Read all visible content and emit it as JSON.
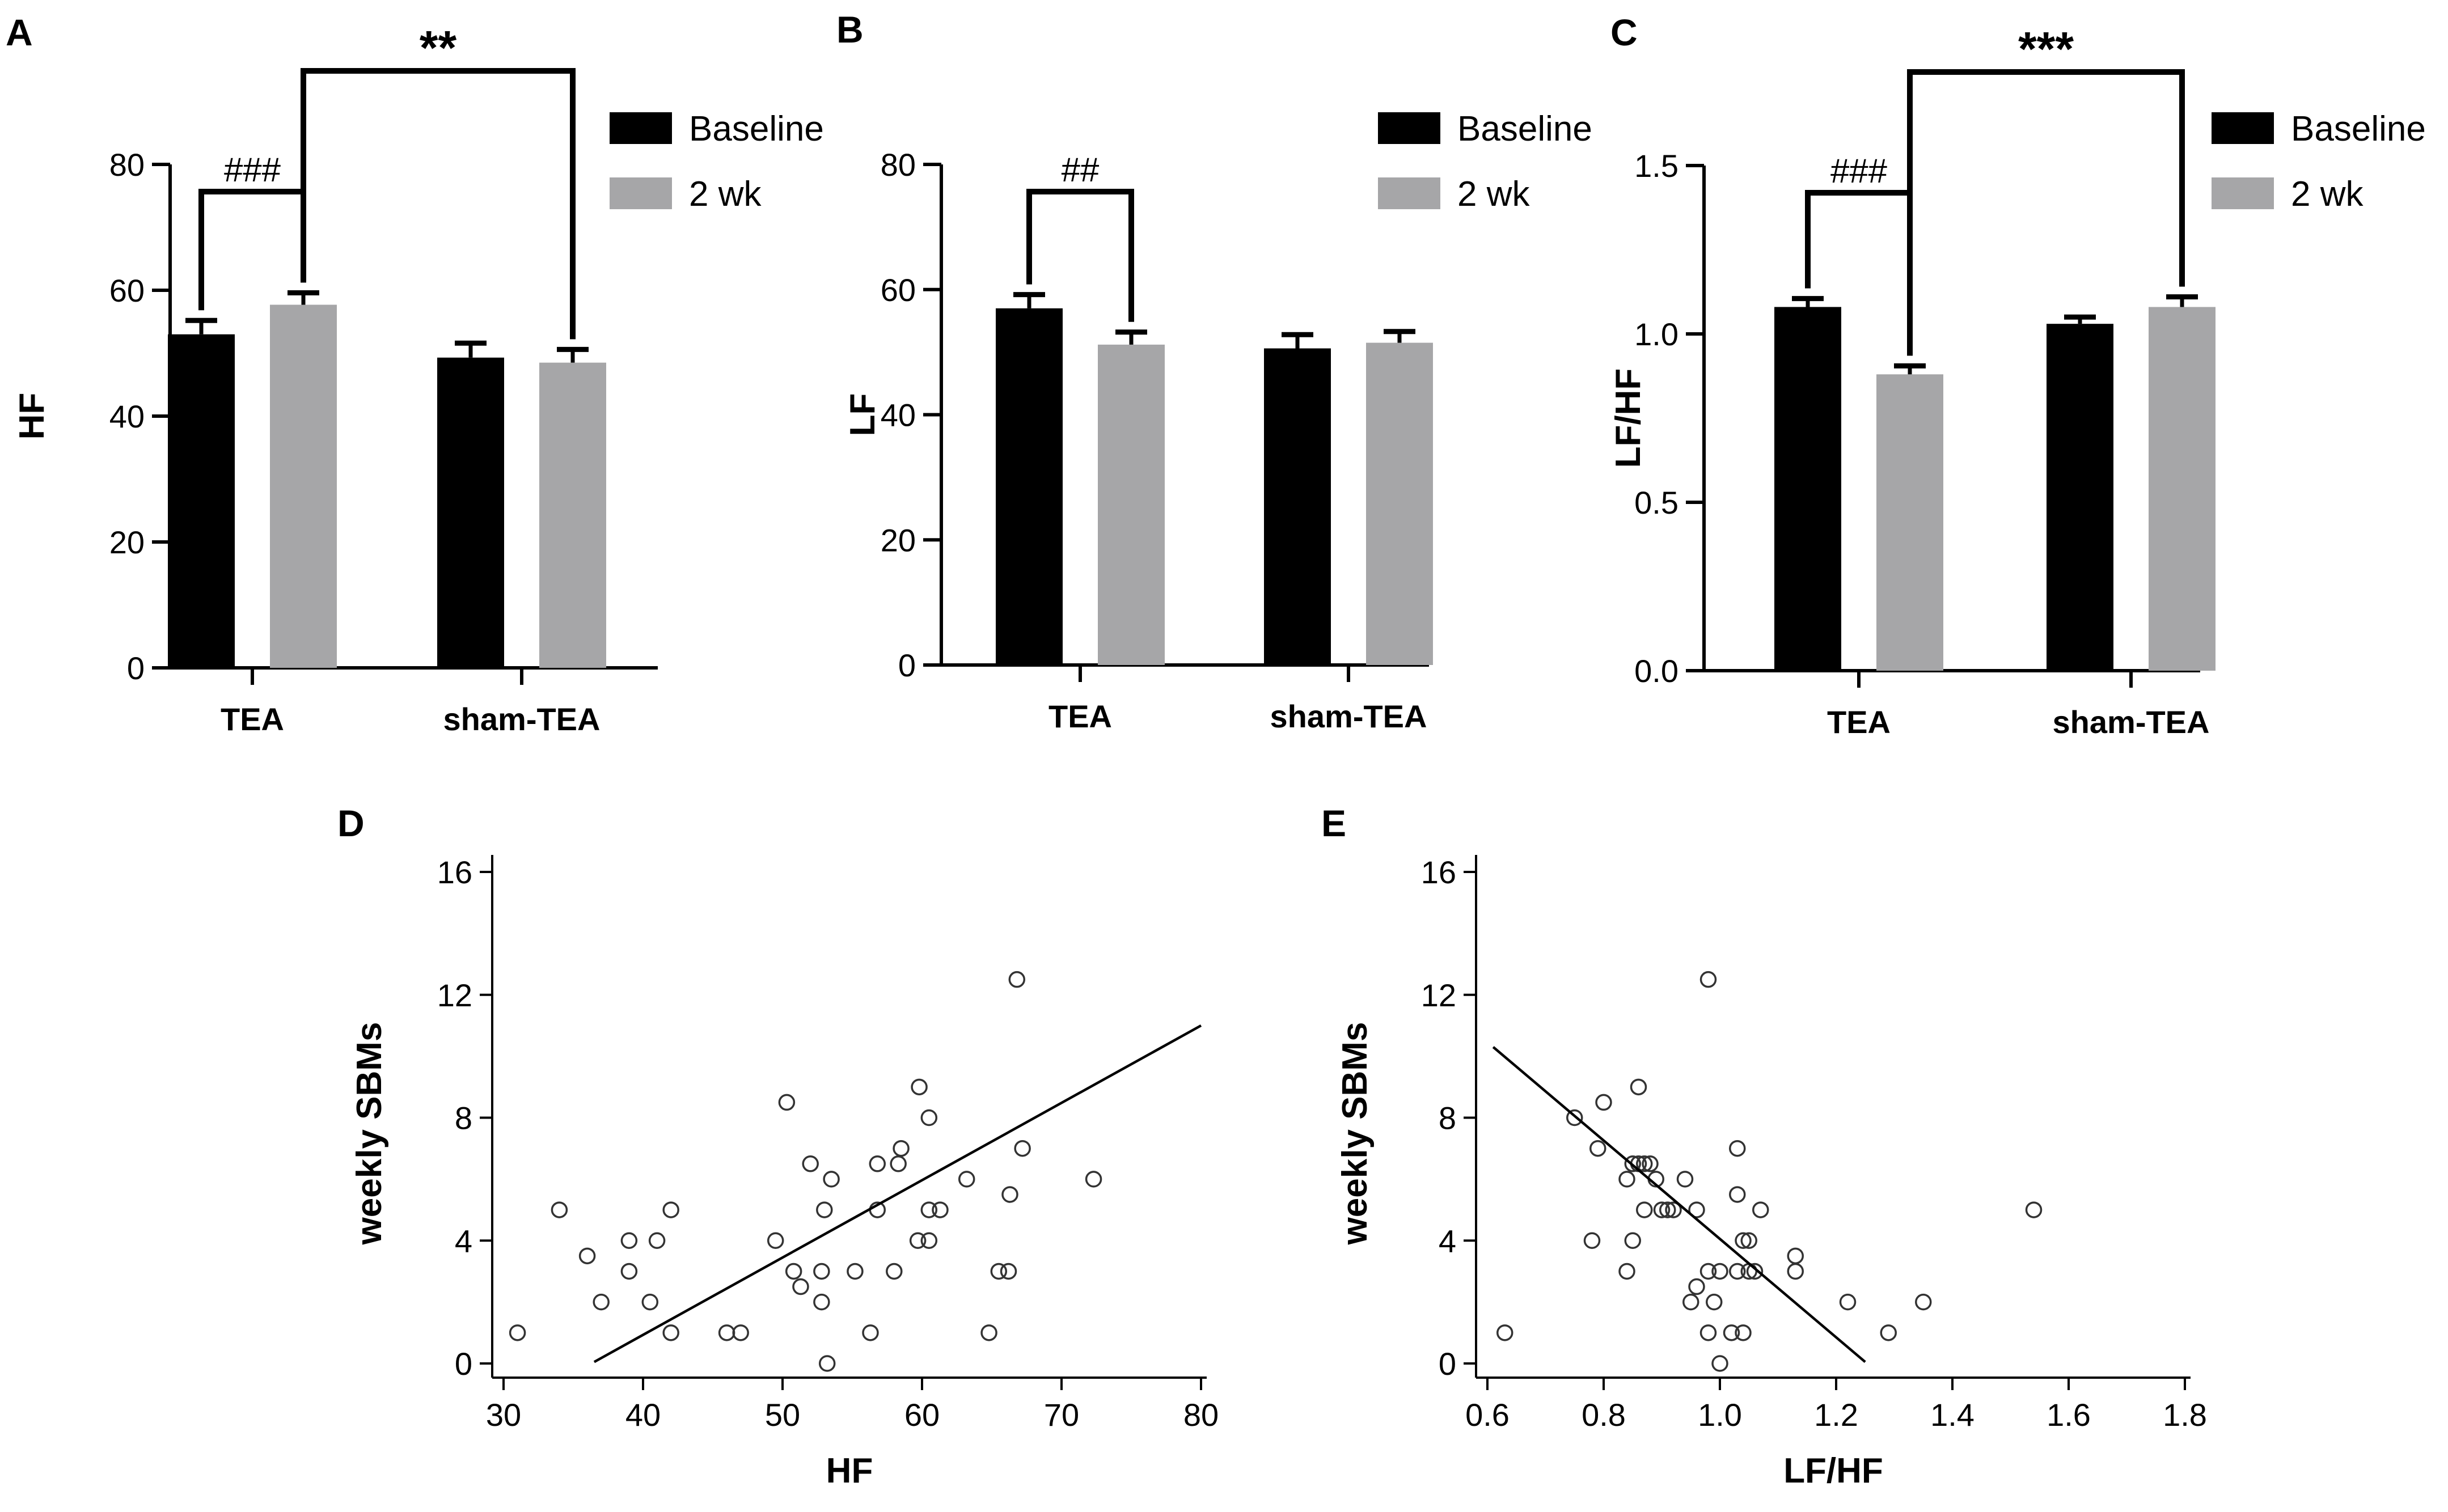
{
  "colors": {
    "baseline": "#000000",
    "two_wk": "#a6a6a8",
    "axis": "#000000",
    "marker": "#333333"
  },
  "chart_data": [
    {
      "id": "A",
      "panel_label": "A",
      "type": "bar",
      "categories": [
        "TEA",
        "sham-TEA"
      ],
      "series": [
        {
          "name": "Baseline",
          "values": [
            53,
            49.3
          ],
          "errors": [
            2.2,
            2.3
          ]
        },
        {
          "name": "2 wk",
          "values": [
            57.7,
            48.5
          ],
          "errors": [
            1.9,
            2.1
          ]
        }
      ],
      "ylabel": "HF",
      "xlabel": "",
      "ylim": [
        0,
        80
      ],
      "yticks": [
        "0",
        "20",
        "40",
        "60",
        "80"
      ],
      "legend_position": "top-right",
      "annotations": [
        {
          "text": "###",
          "from": [
            0,
            0
          ],
          "to": [
            0,
            1
          ]
        },
        {
          "text": "**",
          "from": [
            0,
            1
          ],
          "to": [
            1,
            1
          ]
        }
      ]
    },
    {
      "id": "B",
      "panel_label": "B",
      "type": "bar",
      "categories": [
        "TEA",
        "sham-TEA"
      ],
      "series": [
        {
          "name": "Baseline",
          "values": [
            57,
            50.6
          ],
          "errors": [
            2.2,
            2.2
          ]
        },
        {
          "name": "2 wk",
          "values": [
            51.2,
            51.5
          ],
          "errors": [
            2.0,
            1.8
          ]
        }
      ],
      "ylabel": "LF",
      "xlabel": "",
      "ylim": [
        0,
        80
      ],
      "yticks": [
        "0",
        "20",
        "40",
        "60",
        "80"
      ],
      "legend_position": "top-right",
      "annotations": [
        {
          "text": "##",
          "from": [
            0,
            0
          ],
          "to": [
            0,
            1
          ]
        }
      ]
    },
    {
      "id": "C",
      "panel_label": "C",
      "type": "bar",
      "categories": [
        "TEA",
        "sham-TEA"
      ],
      "series": [
        {
          "name": "Baseline",
          "values": [
            1.08,
            1.03
          ],
          "errors": [
            0.025,
            0.02
          ]
        },
        {
          "name": "2 wk",
          "values": [
            0.88,
            1.08
          ],
          "errors": [
            0.025,
            0.03
          ]
        }
      ],
      "ylabel": "LF/HF",
      "xlabel": "",
      "ylim": [
        0,
        1.5
      ],
      "yticks": [
        "0.0",
        "0.5",
        "1.0",
        "1.5"
      ],
      "legend_position": "top-right",
      "annotations": [
        {
          "text": "###",
          "from": [
            0,
            0
          ],
          "to": [
            0,
            1
          ]
        },
        {
          "text": "***",
          "from": [
            0,
            1
          ],
          "to": [
            1,
            1
          ]
        }
      ]
    },
    {
      "id": "D",
      "panel_label": "D",
      "type": "scatter",
      "xlabel": "HF",
      "ylabel": "weekly SBMs",
      "xlim": [
        30,
        80
      ],
      "ylim": [
        0,
        16
      ],
      "xticks": [
        "30",
        "40",
        "50",
        "60",
        "70",
        "80"
      ],
      "yticks": [
        "0",
        "4",
        "8",
        "12",
        "16"
      ],
      "points": [
        [
          31,
          1
        ],
        [
          34,
          5
        ],
        [
          36,
          3.5
        ],
        [
          37,
          2
        ],
        [
          39,
          4
        ],
        [
          39,
          3
        ],
        [
          40.5,
          2
        ],
        [
          41,
          4
        ],
        [
          42,
          5
        ],
        [
          42,
          1
        ],
        [
          46,
          1
        ],
        [
          47,
          1
        ],
        [
          49.5,
          4
        ],
        [
          50.3,
          8.5
        ],
        [
          50.8,
          3
        ],
        [
          51.3,
          2.5
        ],
        [
          52,
          6.5
        ],
        [
          52.8,
          3
        ],
        [
          52.8,
          2
        ],
        [
          53,
          5
        ],
        [
          53.5,
          6
        ],
        [
          53.2,
          0
        ],
        [
          55.2,
          3
        ],
        [
          56.3,
          1
        ],
        [
          56.8,
          5
        ],
        [
          56.8,
          6.5
        ],
        [
          58,
          3
        ],
        [
          58.3,
          6.5
        ],
        [
          58.5,
          7
        ],
        [
          59.7,
          4
        ],
        [
          59.8,
          9
        ],
        [
          60.5,
          4
        ],
        [
          60.5,
          5
        ],
        [
          60.5,
          8
        ],
        [
          61.3,
          5
        ],
        [
          63.2,
          6
        ],
        [
          64.8,
          1
        ],
        [
          65.5,
          3
        ],
        [
          66.2,
          3
        ],
        [
          66.3,
          5.5
        ],
        [
          66.8,
          12.5
        ],
        [
          67.2,
          7
        ],
        [
          72.3,
          6
        ]
      ],
      "trendline": {
        "x": [
          36.5,
          80
        ],
        "y": [
          0.05,
          11
        ]
      }
    },
    {
      "id": "E",
      "panel_label": "E",
      "type": "scatter",
      "xlabel": "LF/HF",
      "ylabel": "weekly SBMs",
      "xlim": [
        0.6,
        1.8
      ],
      "ylim": [
        0,
        16
      ],
      "xticks": [
        "0.6",
        "0.8",
        "1.0",
        "1.2",
        "1.4",
        "1.6",
        "1.8"
      ],
      "yticks": [
        "0",
        "4",
        "8",
        "12",
        "16"
      ],
      "points": [
        [
          0.63,
          1
        ],
        [
          0.75,
          8
        ],
        [
          0.78,
          4
        ],
        [
          0.79,
          7
        ],
        [
          0.8,
          8.5
        ],
        [
          0.84,
          6
        ],
        [
          0.84,
          3
        ],
        [
          0.85,
          6.5
        ],
        [
          0.85,
          4
        ],
        [
          0.86,
          9
        ],
        [
          0.86,
          6.5
        ],
        [
          0.87,
          5
        ],
        [
          0.87,
          6.5
        ],
        [
          0.88,
          6.5
        ],
        [
          0.89,
          6
        ],
        [
          0.9,
          5
        ],
        [
          0.91,
          5
        ],
        [
          0.92,
          5
        ],
        [
          0.94,
          6
        ],
        [
          0.95,
          2
        ],
        [
          0.96,
          5
        ],
        [
          0.96,
          2.5
        ],
        [
          0.98,
          12.5
        ],
        [
          0.98,
          1
        ],
        [
          0.98,
          3
        ],
        [
          0.99,
          2
        ],
        [
          1.0,
          3
        ],
        [
          1.0,
          0
        ],
        [
          1.02,
          1
        ],
        [
          1.03,
          7
        ],
        [
          1.03,
          5.5
        ],
        [
          1.03,
          3
        ],
        [
          1.04,
          4
        ],
        [
          1.04,
          1
        ],
        [
          1.05,
          4
        ],
        [
          1.05,
          3
        ],
        [
          1.06,
          3
        ],
        [
          1.07,
          5
        ],
        [
          1.13,
          3.5
        ],
        [
          1.13,
          3
        ],
        [
          1.22,
          2
        ],
        [
          1.29,
          1
        ],
        [
          1.35,
          2
        ],
        [
          1.54,
          5
        ]
      ],
      "trendline": {
        "x": [
          0.61,
          1.25
        ],
        "y": [
          10.3,
          0.05
        ]
      }
    }
  ]
}
